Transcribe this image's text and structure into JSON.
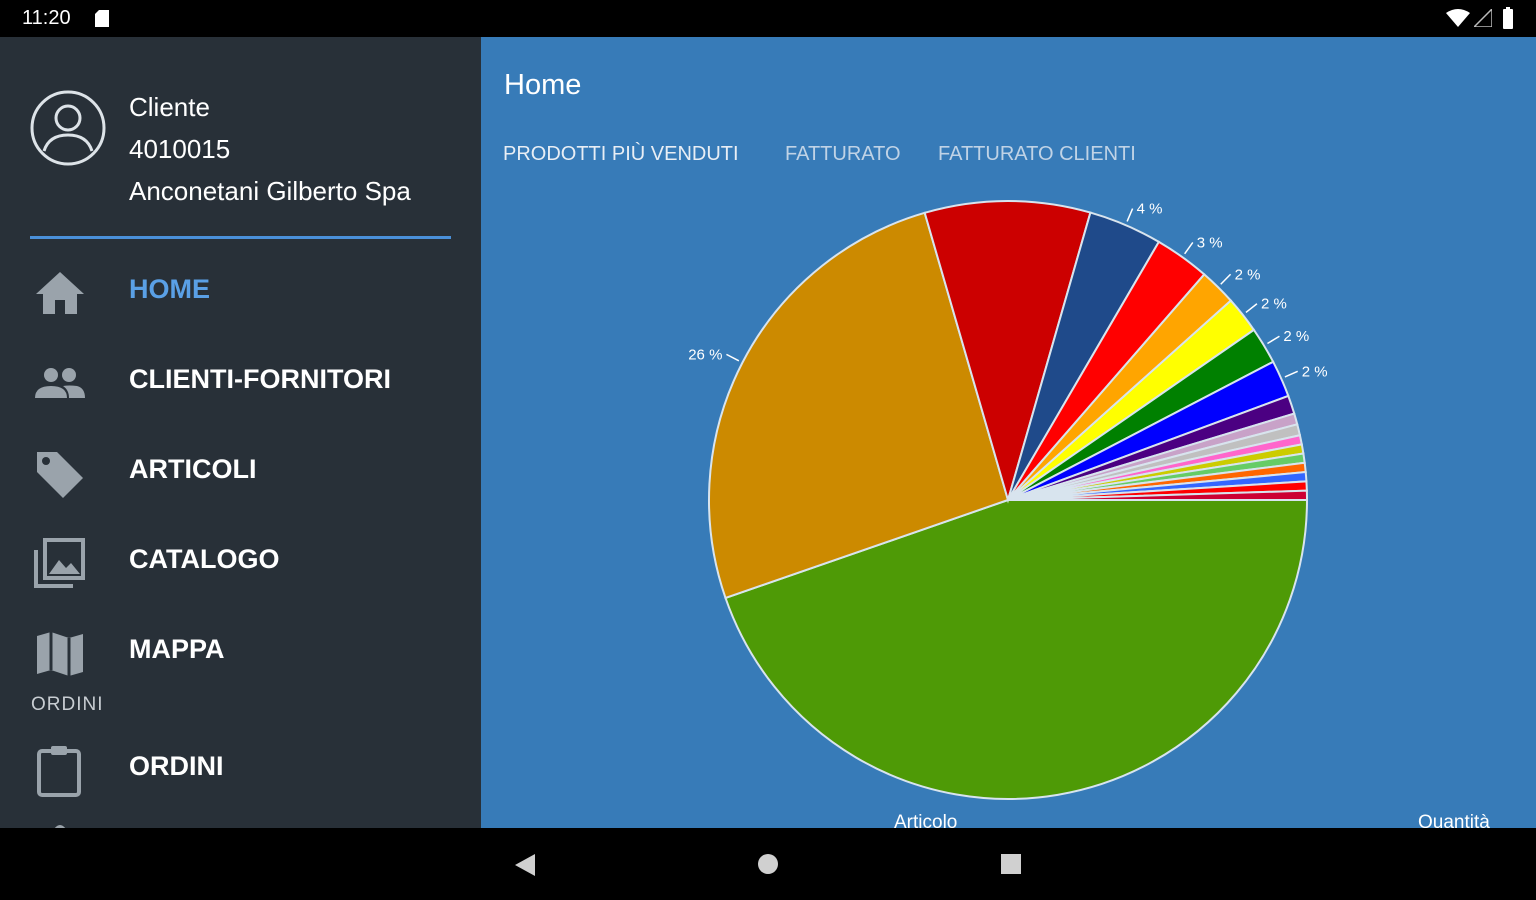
{
  "status": {
    "time": "11:20"
  },
  "drawer": {
    "client_label": "Cliente",
    "client_code": "4010015",
    "client_name": "Anconetani Gilberto Spa",
    "items": [
      {
        "label": "HOME",
        "icon": "home-icon",
        "active": true
      },
      {
        "label": "CLIENTI-FORNITORI",
        "icon": "people-icon",
        "active": false
      },
      {
        "label": "ARTICOLI",
        "icon": "tag-icon",
        "active": false
      },
      {
        "label": "CATALOGO",
        "icon": "photo-library-icon",
        "active": false
      },
      {
        "label": "MAPPA",
        "icon": "map-icon",
        "active": false
      }
    ],
    "section_label": "ORDINI",
    "section_items": [
      {
        "label": "ORDINI",
        "icon": "clipboard-icon",
        "active": false
      }
    ]
  },
  "main": {
    "title": "Home",
    "tabs": [
      {
        "label": "PRODOTTI PIÙ VENDUTI",
        "active": true
      },
      {
        "label": "FATTURATO",
        "active": false
      },
      {
        "label": "FATTURATO CLIENTI",
        "active": false
      }
    ],
    "columns": {
      "left": "Articolo",
      "right": "Quantità"
    }
  },
  "chart_data": {
    "type": "pie",
    "values": [
      45,
      26,
      9,
      4,
      3,
      2,
      2,
      2,
      2,
      1,
      0.6,
      0.6,
      0.5,
      0.5,
      0.5,
      0.5,
      0.5,
      0.5,
      0.5
    ],
    "labels": [
      "",
      "26 %",
      "",
      "4 %",
      "3 %",
      "2 %",
      "2 %",
      "2 %",
      "2 %",
      "",
      "",
      "",
      "",
      "",
      "",
      "",
      "",
      "",
      ""
    ],
    "colors": [
      "#4e9a06",
      "#cc8a00",
      "#cc0000",
      "#1f4a8a",
      "#ff0000",
      "#ffa500",
      "#ffff00",
      "#008000",
      "#0000ff",
      "#4b0082",
      "#c8a2c8",
      "#c0c0c0",
      "#ff66cc",
      "#cccc00",
      "#66cc66",
      "#ff6600",
      "#3366ff",
      "#ff0000",
      "#cc0033"
    ]
  }
}
